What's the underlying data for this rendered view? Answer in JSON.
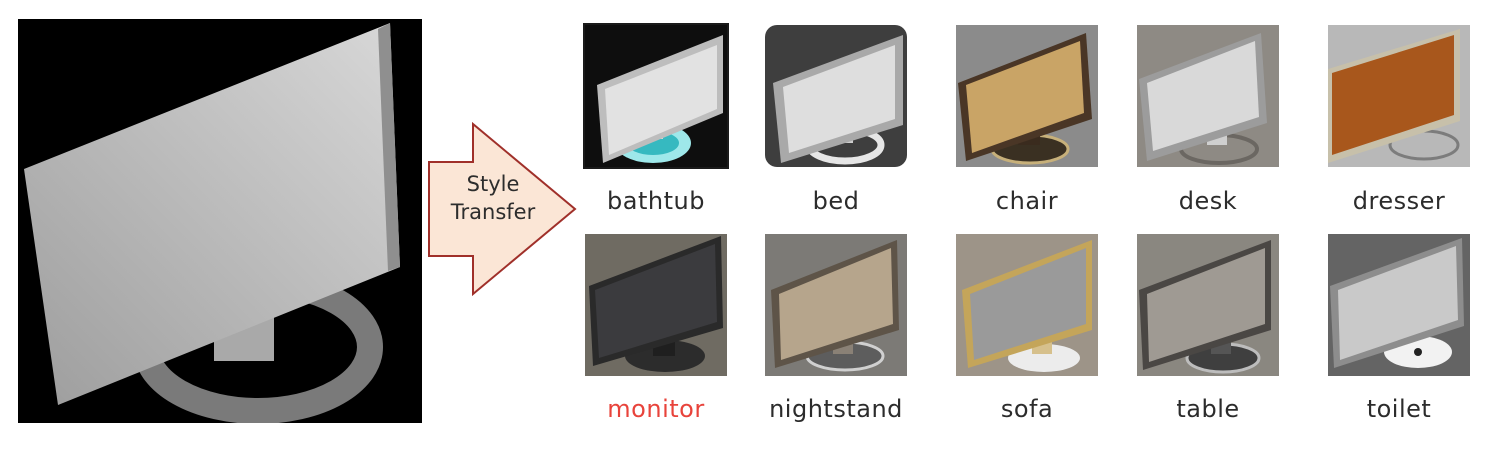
{
  "arrow": {
    "line1": "Style",
    "line2": "Transfer"
  },
  "classes": {
    "row1": [
      "bathtub",
      "bed",
      "chair",
      "desk",
      "dresser"
    ],
    "row2": [
      "monitor",
      "nightstand",
      "sofa",
      "table",
      "toilet"
    ]
  },
  "colors": {
    "target_label": "#e8433b",
    "label": "#2c2c2c",
    "arrow_fill": "#fbe6d6",
    "arrow_stroke": "#a0302a"
  }
}
